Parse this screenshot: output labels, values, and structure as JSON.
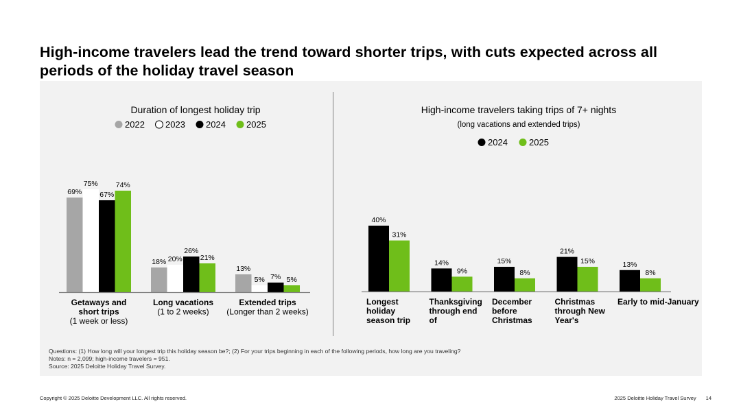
{
  "title": "High-income travelers lead the trend toward shorter trips, with cuts expected across all periods of the holiday travel season",
  "colors": {
    "2022": "#a6a6a6",
    "2023": "#ffffff",
    "2024": "#000000",
    "2025": "#6fbe1a",
    "panel": "#f2f2f2"
  },
  "chart_data": [
    {
      "type": "bar",
      "title": "Duration of longest holiday trip",
      "subtitle": "",
      "legend": [
        "2022",
        "2023",
        "2024",
        "2025"
      ],
      "categories": [
        {
          "label": "Getaways and short trips",
          "sublabel": "(1 week or less)"
        },
        {
          "label": "Long vacations",
          "sublabel": "(1 to 2 weeks)"
        },
        {
          "label": "Extended trips",
          "sublabel": "(Longer than 2 weeks)"
        }
      ],
      "series": [
        {
          "name": "2022",
          "values": [
            69,
            18,
            13
          ]
        },
        {
          "name": "2023",
          "values": [
            75,
            20,
            5
          ]
        },
        {
          "name": "2024",
          "values": [
            67,
            26,
            7
          ]
        },
        {
          "name": "2025",
          "values": [
            74,
            21,
            5
          ]
        }
      ],
      "unit": "%",
      "ylim": [
        0,
        80
      ]
    },
    {
      "type": "bar",
      "title": "High-income travelers taking trips of 7+ nights",
      "subtitle": "(long vacations and extended trips)",
      "legend": [
        "2024",
        "2025"
      ],
      "categories": [
        {
          "label": "Longest holiday season trip",
          "sublabel": ""
        },
        {
          "label": "Thanksgiving through end of November",
          "sublabel": ""
        },
        {
          "label": "December before Christmas",
          "sublabel": ""
        },
        {
          "label": "Christmas through New Year's",
          "sublabel": ""
        },
        {
          "label": "Early to mid-January",
          "sublabel": ""
        }
      ],
      "series": [
        {
          "name": "2024",
          "values": [
            40,
            14,
            15,
            21,
            13
          ]
        },
        {
          "name": "2025",
          "values": [
            31,
            9,
            8,
            15,
            8
          ]
        }
      ],
      "unit": "%",
      "ylim": [
        0,
        45
      ]
    }
  ],
  "notes": [
    "Questions: (1) How long will your longest trip this holiday season be?; (2) For your trips beginning in each of the following periods, how long are you traveling?",
    "Notes: n = 2,099; high-income travelers = 951.",
    "Source: 2025 Deloitte Holiday Travel Survey."
  ],
  "footer": {
    "copyright": "Copyright © 2025 Deloitte Development LLC. All rights reserved.",
    "survey": "2025 Deloitte Holiday Travel Survey",
    "page": "14"
  }
}
